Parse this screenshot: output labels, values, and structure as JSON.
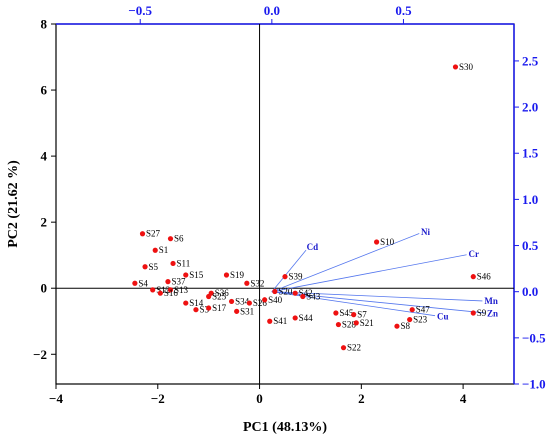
{
  "chart_data": {
    "type": "scatter",
    "title": "",
    "xlabel": "PC1 (48.13%)",
    "ylabel": "PC2 (21.62 %)",
    "xlim": [
      -4,
      5
    ],
    "ylim": [
      -2.9,
      8
    ],
    "xticks": [
      -4,
      -2,
      0,
      2,
      4
    ],
    "yticks": [
      -2,
      0,
      2,
      4,
      6,
      8
    ],
    "top_axis": {
      "lim": [
        -0.82,
        0.92
      ],
      "ticks": [
        -0.5,
        0.0,
        0.5
      ],
      "tick_labels": [
        "−0.5",
        "0.0",
        "0.5"
      ]
    },
    "right_axis": {
      "lim": [
        -1.0,
        2.9
      ],
      "ticks": [
        -1.0,
        -0.5,
        0.0,
        0.5,
        1.0,
        1.5,
        2.0,
        2.5
      ],
      "tick_labels": [
        "−1.0",
        "−0.5",
        "0.0",
        "0.5",
        "1.0",
        "1.5",
        "2.0",
        "2.5"
      ]
    },
    "grid": false,
    "colors": {
      "scores": "#ee1111",
      "loadings": "#5577ee",
      "loading_text": "#1a1acc",
      "secondary_axis": "#1a1aee"
    },
    "scores": [
      {
        "label": "S30",
        "x": 3.85,
        "y": 6.7
      },
      {
        "label": "S27",
        "x": -2.3,
        "y": 1.65
      },
      {
        "label": "S6",
        "x": -1.75,
        "y": 1.5
      },
      {
        "label": "S1",
        "x": -2.05,
        "y": 1.15
      },
      {
        "label": "S11",
        "x": -1.7,
        "y": 0.75
      },
      {
        "label": "S5",
        "x": -2.25,
        "y": 0.65
      },
      {
        "label": "S15",
        "x": -1.45,
        "y": 0.4
      },
      {
        "label": "S37",
        "x": -1.8,
        "y": 0.2
      },
      {
        "label": "S4",
        "x": -2.45,
        "y": 0.15
      },
      {
        "label": "S12",
        "x": -2.1,
        "y": -0.05
      },
      {
        "label": "S13",
        "x": -1.75,
        "y": -0.05
      },
      {
        "label": "S16",
        "x": -1.95,
        "y": -0.15
      },
      {
        "label": "S14",
        "x": -1.45,
        "y": -0.45
      },
      {
        "label": "S3",
        "x": -1.25,
        "y": -0.65
      },
      {
        "label": "S17",
        "x": -1.0,
        "y": -0.6
      },
      {
        "label": "S19",
        "x": -0.65,
        "y": 0.4
      },
      {
        "label": "S32",
        "x": -0.25,
        "y": 0.15
      },
      {
        "label": "S36",
        "x": -0.95,
        "y": -0.15
      },
      {
        "label": "S25",
        "x": -1.0,
        "y": -0.25
      },
      {
        "label": "S31",
        "x": -0.45,
        "y": -0.7
      },
      {
        "label": "S34",
        "x": -0.55,
        "y": -0.4
      },
      {
        "label": "S26",
        "x": -0.2,
        "y": -0.45
      },
      {
        "label": "S40",
        "x": 0.1,
        "y": -0.35
      },
      {
        "label": "S20",
        "x": 0.3,
        "y": -0.1
      },
      {
        "label": "S39",
        "x": 0.5,
        "y": 0.35
      },
      {
        "label": "S42",
        "x": 0.7,
        "y": -0.15
      },
      {
        "label": "S43",
        "x": 0.85,
        "y": -0.25
      },
      {
        "label": "S41",
        "x": 0.2,
        "y": -1.0
      },
      {
        "label": "S44",
        "x": 0.7,
        "y": -0.9
      },
      {
        "label": "S10",
        "x": 2.3,
        "y": 1.4
      },
      {
        "label": "S46",
        "x": 4.2,
        "y": 0.35
      },
      {
        "label": "S45",
        "x": 1.5,
        "y": -0.75
      },
      {
        "label": "S7",
        "x": 1.85,
        "y": -0.8
      },
      {
        "label": "S28",
        "x": 1.55,
        "y": -1.1
      },
      {
        "label": "S21",
        "x": 1.9,
        "y": -1.05
      },
      {
        "label": "S22",
        "x": 1.65,
        "y": -1.8
      },
      {
        "label": "S47",
        "x": 3.0,
        "y": -0.65
      },
      {
        "label": "S23",
        "x": 2.95,
        "y": -0.95
      },
      {
        "label": "S8",
        "x": 2.7,
        "y": -1.15
      },
      {
        "label": "S9",
        "x": 4.2,
        "y": -0.75
      }
    ],
    "loadings": [
      {
        "label": "Cd",
        "x": 0.13,
        "y": 0.45
      },
      {
        "label": "Ni",
        "x": 0.56,
        "y": 0.63
      },
      {
        "label": "Cr",
        "x": 0.74,
        "y": 0.4
      },
      {
        "label": "Mn",
        "x": 0.8,
        "y": -0.1
      },
      {
        "label": "Zn",
        "x": 0.81,
        "y": -0.23
      },
      {
        "label": "Cu",
        "x": 0.62,
        "y": -0.26
      }
    ]
  }
}
